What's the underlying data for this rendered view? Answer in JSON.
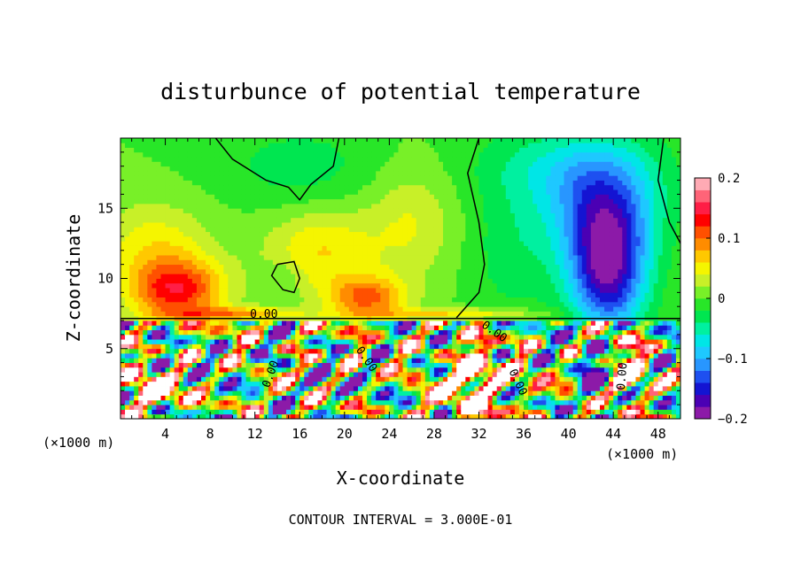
{
  "chart_data": {
    "type": "heatmap",
    "title": "disturbunce of potential temperature",
    "xlabel": "X-coordinate",
    "ylabel": "Z-coordinate",
    "x_unit_left": "(×1000 m)",
    "x_unit_right": "(×1000 m)",
    "xlim": [
      0,
      50
    ],
    "ylim": [
      0,
      20
    ],
    "x_ticks": [
      {
        "value": 4,
        "label": "4"
      },
      {
        "value": 8,
        "label": "8"
      },
      {
        "value": 12,
        "label": "12"
      },
      {
        "value": 16,
        "label": "16"
      },
      {
        "value": 20,
        "label": "20"
      },
      {
        "value": 24,
        "label": "24"
      },
      {
        "value": 28,
        "label": "28"
      },
      {
        "value": 32,
        "label": "32"
      },
      {
        "value": 36,
        "label": "36"
      },
      {
        "value": 40,
        "label": "40"
      },
      {
        "value": 44,
        "label": "44"
      },
      {
        "value": 48,
        "label": "48"
      }
    ],
    "y_ticks": [
      {
        "value": 5,
        "label": "5"
      },
      {
        "value": 10,
        "label": "10"
      },
      {
        "value": 15,
        "label": "15"
      }
    ],
    "colorbar": {
      "range": [
        -0.2,
        0.2
      ],
      "ticks": [
        {
          "value": 0.2,
          "label": "0.2"
        },
        {
          "value": 0.1,
          "label": "0.1"
        },
        {
          "value": 0,
          "label": "0"
        },
        {
          "value": -0.1,
          "label": "−0.1"
        },
        {
          "value": -0.2,
          "label": "−0.2"
        }
      ],
      "colors": [
        "#8c1aa8",
        "#4b00b4",
        "#1414d2",
        "#1e50f0",
        "#2896ff",
        "#1ec8ff",
        "#00e6e6",
        "#00f0a0",
        "#00e650",
        "#28e628",
        "#78f028",
        "#c8f028",
        "#f5f500",
        "#ffc800",
        "#ff8c00",
        "#ff5000",
        "#ff0000",
        "#ff1e46",
        "#ff6478",
        "#ffaab4"
      ]
    },
    "contour_labels": [
      {
        "text": "0.00",
        "x": 12.8,
        "z": 7.2,
        "rotate": 0
      },
      {
        "text": "0.00",
        "x": 13.7,
        "z": 3.1,
        "rotate": -70
      },
      {
        "text": "0.00",
        "x": 21.7,
        "z": 4.1,
        "rotate": 55
      },
      {
        "text": "0.00",
        "x": 33.2,
        "z": 6.0,
        "rotate": 35
      },
      {
        "text": "0.00",
        "x": 35.2,
        "z": 2.5,
        "rotate": 65
      },
      {
        "text": "0.00",
        "x": 45.1,
        "z": 3.0,
        "rotate": -85
      }
    ],
    "footer": "CONTOUR INTERVAL = 3.000E-01"
  }
}
